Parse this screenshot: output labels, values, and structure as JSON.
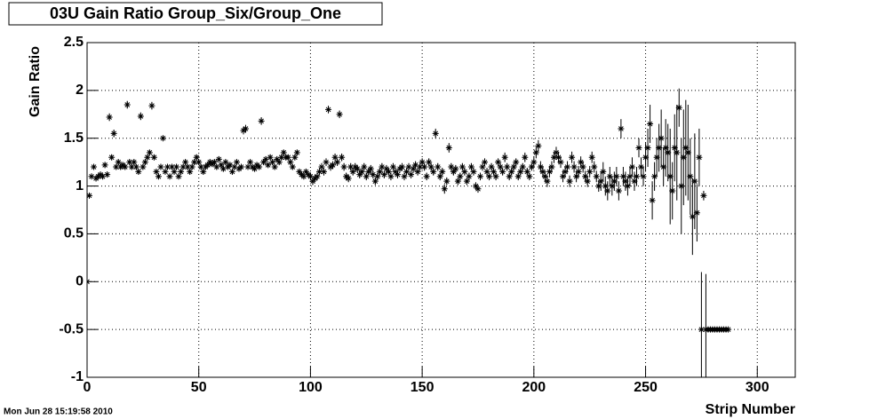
{
  "chart_data": {
    "type": "scatter",
    "title": "03U Gain Ratio Group_Six/Group_One",
    "x_label": "Strip Number",
    "y_label": "Gain Ratio",
    "timestamp": "Mon Jun 28 15:19:58 2010",
    "xlim": [
      0,
      317
    ],
    "ylim": [
      -1,
      2.5
    ],
    "xticks": [
      0,
      50,
      100,
      150,
      200,
      250,
      300
    ],
    "yticks": [
      -1,
      -0.5,
      0,
      0.5,
      1,
      1.5,
      2,
      2.5
    ],
    "grid": true,
    "series": [
      {
        "color": "#000000",
        "x": [
          0,
          1,
          2,
          3,
          4,
          5,
          6,
          7,
          8,
          9,
          10,
          11,
          12,
          13,
          14,
          15,
          16,
          17,
          18,
          19,
          20,
          21,
          22,
          23,
          24,
          25,
          26,
          27,
          28,
          29,
          30,
          31,
          32,
          33,
          34,
          35,
          36,
          37,
          38,
          39,
          40,
          41,
          42,
          43,
          44,
          45,
          46,
          47,
          48,
          49,
          50,
          51,
          52,
          53,
          54,
          55,
          56,
          57,
          58,
          59,
          60,
          61,
          62,
          63,
          64,
          65,
          66,
          67,
          68,
          69,
          70,
          71,
          72,
          73,
          74,
          75,
          76,
          77,
          78,
          79,
          80,
          81,
          82,
          83,
          84,
          85,
          86,
          87,
          88,
          89,
          90,
          91,
          92,
          93,
          94,
          95,
          96,
          97,
          98,
          99,
          100,
          101,
          102,
          103,
          104,
          105,
          106,
          107,
          108,
          109,
          110,
          111,
          112,
          113,
          114,
          115,
          116,
          117,
          118,
          119,
          120,
          121,
          122,
          123,
          124,
          125,
          126,
          127,
          128,
          129,
          130,
          131,
          132,
          133,
          134,
          135,
          136,
          137,
          138,
          139,
          140,
          141,
          142,
          143,
          144,
          145,
          146,
          147,
          148,
          149,
          150,
          151,
          152,
          153,
          154,
          155,
          156,
          157,
          158,
          159,
          160,
          161,
          162,
          163,
          164,
          165,
          166,
          167,
          168,
          169,
          170,
          171,
          172,
          173,
          174,
          175,
          176,
          177,
          178,
          179,
          180,
          181,
          182,
          183,
          184,
          185,
          186,
          187,
          188,
          189,
          190,
          191,
          192,
          193,
          194,
          195,
          196,
          197,
          198,
          199,
          200,
          201,
          202,
          203,
          204,
          205,
          206,
          207,
          208,
          209,
          210,
          211,
          212,
          213,
          214,
          215,
          216,
          217,
          218,
          219,
          220,
          221,
          222,
          223,
          224,
          225,
          226,
          227,
          228,
          229,
          230,
          231,
          232,
          233,
          234,
          235,
          236,
          237,
          238,
          239,
          240,
          241,
          242,
          243,
          244,
          245,
          246,
          247,
          248,
          249,
          250,
          251,
          252,
          253,
          254,
          255,
          256,
          257,
          258,
          259,
          260,
          261,
          262,
          263,
          264,
          265,
          266,
          267,
          268,
          269,
          270,
          271,
          272,
          273,
          274,
          275,
          276,
          277,
          278,
          279,
          280,
          281,
          282,
          283,
          284,
          285,
          286,
          287
        ],
        "values": [
          0,
          0.9,
          1.1,
          1.2,
          1.08,
          1.1,
          1.12,
          1.1,
          1.22,
          1.12,
          1.72,
          1.3,
          1.55,
          1.2,
          1.25,
          1.2,
          1.22,
          1.2,
          1.85,
          1.25,
          1.2,
          1.25,
          1.2,
          1.15,
          1.73,
          1.2,
          1.25,
          1.3,
          1.35,
          1.84,
          1.3,
          1.15,
          1.1,
          1.2,
          1.5,
          1.15,
          1.2,
          1.1,
          1.2,
          1.15,
          1.2,
          1.1,
          1.15,
          1.2,
          1.25,
          1.2,
          1.15,
          1.2,
          1.25,
          1.3,
          1.25,
          1.2,
          1.15,
          1.2,
          1.22,
          1.25,
          1.23,
          1.25,
          1.2,
          1.28,
          1.22,
          1.18,
          1.25,
          1.2,
          1.22,
          1.15,
          1.2,
          1.25,
          1.18,
          1.2,
          1.58,
          1.6,
          1.2,
          1.25,
          1.2,
          1.18,
          1.22,
          1.2,
          1.68,
          1.25,
          1.28,
          1.22,
          1.3,
          1.25,
          1.2,
          1.28,
          1.25,
          1.3,
          1.35,
          1.3,
          1.3,
          1.25,
          1.2,
          1.3,
          1.35,
          1.15,
          1.12,
          1.1,
          1.15,
          1.12,
          1.1,
          1.05,
          1.08,
          1.1,
          1.15,
          1.2,
          1.15,
          1.25,
          1.8,
          1.2,
          1.22,
          1.3,
          1.25,
          1.75,
          1.3,
          1.2,
          1.1,
          1.08,
          1.2,
          1.15,
          1.2,
          1.18,
          1.12,
          1.15,
          1.2,
          1.1,
          1.15,
          1.18,
          1.12,
          1.05,
          1.1,
          1.15,
          1.2,
          1.12,
          1.18,
          1.15,
          1.1,
          1.2,
          1.15,
          1.12,
          1.18,
          1.2,
          1.1,
          1.15,
          1.2,
          1.12,
          1.18,
          1.22,
          1.15,
          1.2,
          1.25,
          1.2,
          1.1,
          1.25,
          1.2,
          1.15,
          1.55,
          1.2,
          1.1,
          1.15,
          0.97,
          1.05,
          1.4,
          1.2,
          1.15,
          1.18,
          1.05,
          1.1,
          1.2,
          1.15,
          1.05,
          1.1,
          1.2,
          1.15,
          1.0,
          0.97,
          1.1,
          1.2,
          1.25,
          1.15,
          1.1,
          1.2,
          1.15,
          1.1,
          1.25,
          1.2,
          1.15,
          1.3,
          1.2,
          1.1,
          1.15,
          1.2,
          1.25,
          1.1,
          1.15,
          1.2,
          1.3,
          1.15,
          1.1,
          1.2,
          1.25,
          1.35,
          1.42,
          1.2,
          1.15,
          1.1,
          1.05,
          1.15,
          1.2,
          1.3,
          1.35,
          1.3,
          1.25,
          1.1,
          1.15,
          1.2,
          1.05,
          1.3,
          1.2,
          1.1,
          1.15,
          1.25,
          1.2,
          1.1,
          1.05,
          1.15,
          1.3,
          1.2,
          1.1,
          1.0,
          1.05,
          1.15,
          1.0,
          0.95,
          1.1,
          1.0,
          1.05,
          1.1,
          0.95,
          1.6,
          1.1,
          1.05,
          1.0,
          1.1,
          1.2,
          1.05,
          1.1,
          1.4,
          1.2,
          1.1,
          1.3,
          1.4,
          1.65,
          0.85,
          1.1,
          1.3,
          1.4,
          1.5,
          1.2,
          1.4,
          1.35,
          1.1,
          0.95,
          1.4,
          1.35,
          1.82,
          1.0,
          1.3,
          1.4,
          1.35,
          1.1,
          0.68,
          1.05,
          0.72,
          1.3,
          -0.5,
          0.9,
          -0.5,
          -0.5,
          -0.5,
          -0.5,
          -0.5,
          -0.5,
          -0.5,
          -0.5,
          -0.5,
          -0.5,
          -0.5
        ],
        "errors": [
          0,
          0.03,
          0.03,
          0.03,
          0.03,
          0.03,
          0.03,
          0.03,
          0.03,
          0.03,
          0.04,
          0.03,
          0.04,
          0.03,
          0.03,
          0.03,
          0.03,
          0.03,
          0.04,
          0.03,
          0.03,
          0.03,
          0.03,
          0.03,
          0.04,
          0.03,
          0.03,
          0.03,
          0.03,
          0.04,
          0.03,
          0.03,
          0.03,
          0.03,
          0.03,
          0.03,
          0.03,
          0.03,
          0.03,
          0.03,
          0.03,
          0.03,
          0.03,
          0.03,
          0.03,
          0.03,
          0.03,
          0.03,
          0.03,
          0.03,
          0.03,
          0.03,
          0.03,
          0.03,
          0.03,
          0.03,
          0.03,
          0.03,
          0.03,
          0.03,
          0.03,
          0.03,
          0.03,
          0.03,
          0.03,
          0.03,
          0.03,
          0.03,
          0.03,
          0.03,
          0.04,
          0.04,
          0.03,
          0.03,
          0.03,
          0.03,
          0.03,
          0.03,
          0.04,
          0.03,
          0.03,
          0.03,
          0.03,
          0.03,
          0.03,
          0.03,
          0.03,
          0.03,
          0.03,
          0.03,
          0.03,
          0.03,
          0.03,
          0.03,
          0.03,
          0.03,
          0.03,
          0.03,
          0.03,
          0.03,
          0.04,
          0.04,
          0.04,
          0.04,
          0.04,
          0.04,
          0.04,
          0.04,
          0.04,
          0.04,
          0.04,
          0.04,
          0.04,
          0.04,
          0.04,
          0.04,
          0.04,
          0.04,
          0.04,
          0.04,
          0.04,
          0.04,
          0.04,
          0.04,
          0.04,
          0.04,
          0.04,
          0.04,
          0.04,
          0.04,
          0.04,
          0.04,
          0.04,
          0.04,
          0.04,
          0.04,
          0.04,
          0.04,
          0.04,
          0.04,
          0.04,
          0.04,
          0.04,
          0.04,
          0.04,
          0.04,
          0.04,
          0.04,
          0.04,
          0.04,
          0.04,
          0.04,
          0.04,
          0.04,
          0.04,
          0.04,
          0.05,
          0.04,
          0.04,
          0.04,
          0.05,
          0.04,
          0.05,
          0.04,
          0.04,
          0.04,
          0.04,
          0.04,
          0.04,
          0.04,
          0.04,
          0.04,
          0.04,
          0.04,
          0.04,
          0.04,
          0.04,
          0.04,
          0.04,
          0.04,
          0.04,
          0.04,
          0.04,
          0.04,
          0.04,
          0.04,
          0.04,
          0.05,
          0.04,
          0.04,
          0.04,
          0.04,
          0.04,
          0.04,
          0.04,
          0.04,
          0.05,
          0.04,
          0.04,
          0.04,
          0.06,
          0.06,
          0.06,
          0.06,
          0.06,
          0.06,
          0.06,
          0.06,
          0.06,
          0.06,
          0.06,
          0.06,
          0.06,
          0.06,
          0.06,
          0.06,
          0.06,
          0.06,
          0.06,
          0.06,
          0.06,
          0.06,
          0.06,
          0.06,
          0.06,
          0.06,
          0.06,
          0.06,
          0.06,
          0.06,
          0.1,
          0.1,
          0.1,
          0.1,
          0.1,
          0.1,
          0.1,
          0.1,
          0.1,
          0.1,
          0.1,
          0.1,
          0.1,
          0.1,
          0.1,
          0.1,
          0.1,
          0.1,
          0.1,
          0.1,
          0.15,
          0.2,
          0.2,
          0.2,
          0.15,
          0.2,
          0.25,
          0.3,
          0.2,
          0.3,
          0.3,
          0.5,
          0.3,
          0.35,
          0.5,
          0.2,
          0.5,
          0.5,
          0.5,
          0.5,
          0.4,
          0.4,
          0.5,
          0.3,
          0.3,
          0.6,
          0.05,
          0.58,
          0,
          0,
          0,
          0,
          0,
          0,
          0,
          0,
          0,
          0
        ]
      }
    ]
  }
}
